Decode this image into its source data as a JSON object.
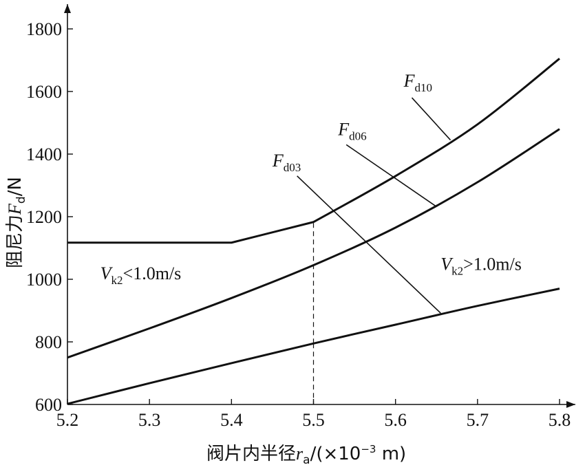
{
  "chart_data": {
    "type": "line",
    "title": "",
    "xlabel": {
      "prefix": "阀片内半径",
      "var": "r",
      "sub": "a",
      "unit_open": "/(×10",
      "exp": "−3",
      "unit_close": " m)"
    },
    "ylabel": {
      "prefix": "阻尼力",
      "var": "F",
      "sub": "d",
      "unit": "/N"
    },
    "xlim": [
      5.2,
      5.8
    ],
    "ylim": [
      600,
      1800
    ],
    "xticks": [
      5.2,
      5.3,
      5.4,
      5.5,
      5.6,
      5.7,
      5.8
    ],
    "xtick_labels": [
      "5.2",
      "5.3",
      "5.4",
      "5.5",
      "5.6",
      "5.7",
      "5.8"
    ],
    "yticks": [
      600,
      800,
      1000,
      1200,
      1400,
      1600,
      1800
    ],
    "ytick_labels": [
      "600",
      "800",
      "1000",
      "1200",
      "1400",
      "1600",
      "1800"
    ],
    "grid": false,
    "series": [
      {
        "key": "F_d10",
        "name": "Fd10",
        "x": [
          5.2,
          5.3,
          5.4,
          5.5,
          5.6,
          5.7,
          5.8
        ],
        "y": [
          1117,
          1117,
          1117,
          1183,
          1330,
          1495,
          1705
        ]
      },
      {
        "key": "F_d06",
        "name": "Fd06",
        "x": [
          5.2,
          5.3,
          5.4,
          5.5,
          5.6,
          5.7,
          5.8
        ],
        "y": [
          750,
          843,
          940,
          1045,
          1165,
          1310,
          1480
        ]
      },
      {
        "key": "F_d03",
        "name": "Fd03",
        "x": [
          5.2,
          5.3,
          5.4,
          5.5,
          5.6,
          5.7,
          5.8
        ],
        "y": [
          602,
          668,
          732,
          795,
          855,
          915,
          970
        ]
      }
    ],
    "reference_line": {
      "x": 5.5,
      "y_from": 795,
      "y_to": 1183,
      "style": "dashed"
    },
    "curve_labels": [
      {
        "series": "F_d10",
        "var": "F",
        "sub": "d10",
        "text_at": [
          5.61,
          1615
        ],
        "leader_from": [
          5.62,
          1580
        ],
        "leader_to": [
          5.667,
          1445
        ]
      },
      {
        "series": "F_d06",
        "var": "F",
        "sub": "d06",
        "text_at": [
          5.53,
          1460
        ],
        "leader_from": [
          5.54,
          1430
        ],
        "leader_to": [
          5.65,
          1232
        ]
      },
      {
        "series": "F_d03",
        "var": "F",
        "sub": "d03",
        "text_at": [
          5.45,
          1360
        ],
        "leader_from": [
          5.48,
          1330
        ],
        "leader_to": [
          5.655,
          892
        ]
      }
    ],
    "annotations": [
      {
        "var": "V",
        "sub": "k2",
        "rest": "<1.0m/s",
        "at": [
          5.24,
          1000
        ]
      },
      {
        "var": "V",
        "sub": "k2",
        "rest": ">1.0m/s",
        "at": [
          5.655,
          1030
        ]
      }
    ]
  }
}
